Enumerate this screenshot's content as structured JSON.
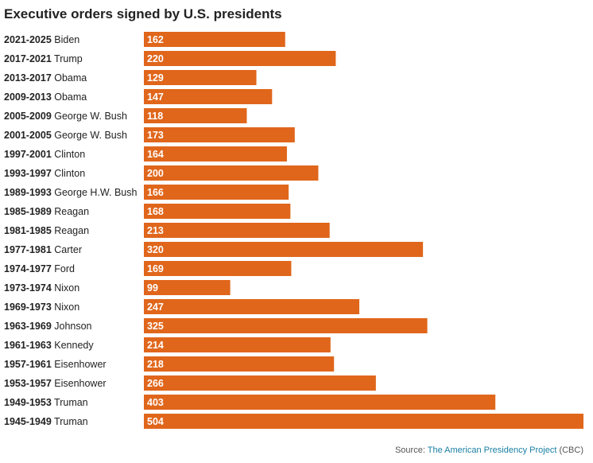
{
  "title": "Executive orders signed by U.S. presidents",
  "source": {
    "prefix": "Source: ",
    "link_text": "The American Presidency Project",
    "suffix": " (CBC)"
  },
  "colors": {
    "bar": "#e0661b",
    "bar_label": "#ffffff",
    "source_link": "#1a7fa3"
  },
  "chart_data": {
    "type": "bar",
    "orientation": "horizontal",
    "title": "Executive orders signed by U.S. presidents",
    "categories": [
      {
        "period": "2021-2025",
        "president": "Biden"
      },
      {
        "period": "2017-2021",
        "president": "Trump"
      },
      {
        "period": "2013-2017",
        "president": "Obama"
      },
      {
        "period": "2009-2013",
        "president": "Obama"
      },
      {
        "period": "2005-2009",
        "president": "George W. Bush"
      },
      {
        "period": "2001-2005",
        "president": "George W. Bush"
      },
      {
        "period": "1997-2001",
        "president": "Clinton"
      },
      {
        "period": "1993-1997",
        "president": "Clinton"
      },
      {
        "period": "1989-1993",
        "president": "George H.W. Bush"
      },
      {
        "period": "1985-1989",
        "president": "Reagan"
      },
      {
        "period": "1981-1985",
        "president": "Reagan"
      },
      {
        "period": "1977-1981",
        "president": "Carter"
      },
      {
        "period": "1974-1977",
        "president": "Ford"
      },
      {
        "period": "1973-1974",
        "president": "Nixon"
      },
      {
        "period": "1969-1973",
        "president": "Nixon"
      },
      {
        "period": "1963-1969",
        "president": "Johnson"
      },
      {
        "period": "1961-1963",
        "president": "Kennedy"
      },
      {
        "period": "1957-1961",
        "president": "Eisenhower"
      },
      {
        "period": "1953-1957",
        "president": "Eisenhower"
      },
      {
        "period": "1949-1953",
        "president": "Truman"
      },
      {
        "period": "1945-1949",
        "president": "Truman"
      }
    ],
    "values": [
      162,
      220,
      129,
      147,
      118,
      173,
      164,
      200,
      166,
      168,
      213,
      320,
      169,
      99,
      247,
      325,
      214,
      218,
      266,
      403,
      504
    ],
    "xlim": [
      0,
      504
    ],
    "data_labels": "inside-bar-start",
    "grid": false,
    "legend": "none"
  }
}
